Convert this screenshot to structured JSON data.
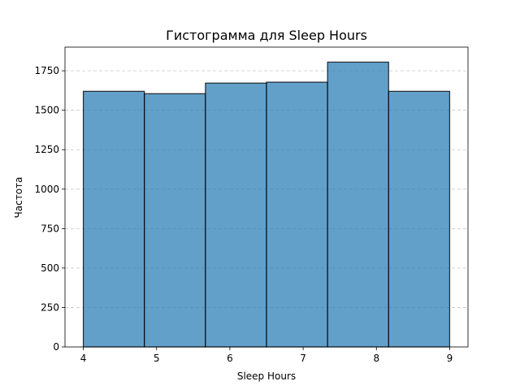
{
  "chart_data": {
    "type": "bar",
    "title": "Гистограмма для Sleep Hours",
    "xlabel": "Sleep Hours",
    "ylabel": "Частота",
    "bins": [
      {
        "start": 4.0,
        "end": 4.8333,
        "value": 1620
      },
      {
        "start": 4.8333,
        "end": 5.6667,
        "value": 1605
      },
      {
        "start": 5.6667,
        "end": 6.5,
        "value": 1672
      },
      {
        "start": 6.5,
        "end": 7.3333,
        "value": 1678
      },
      {
        "start": 7.3333,
        "end": 8.1667,
        "value": 1805
      },
      {
        "start": 8.1667,
        "end": 9.0,
        "value": 1620
      }
    ],
    "xlim": [
      3.75,
      9.25
    ],
    "ylim": [
      0,
      1900
    ],
    "xticks": [
      {
        "value": 4,
        "label": "4"
      },
      {
        "value": 5,
        "label": "5"
      },
      {
        "value": 6,
        "label": "6"
      },
      {
        "value": 7,
        "label": "7"
      },
      {
        "value": 8,
        "label": "8"
      },
      {
        "value": 9,
        "label": "9"
      }
    ],
    "yticks": [
      {
        "value": 0,
        "label": "0"
      },
      {
        "value": 250,
        "label": "250"
      },
      {
        "value": 500,
        "label": "500"
      },
      {
        "value": 750,
        "label": "750"
      },
      {
        "value": 1000,
        "label": "1000"
      },
      {
        "value": 1250,
        "label": "1250"
      },
      {
        "value": 1500,
        "label": "1500"
      },
      {
        "value": 1750,
        "label": "1750"
      }
    ],
    "grid": "y-dashed",
    "bar_color": "#1f77b4"
  }
}
